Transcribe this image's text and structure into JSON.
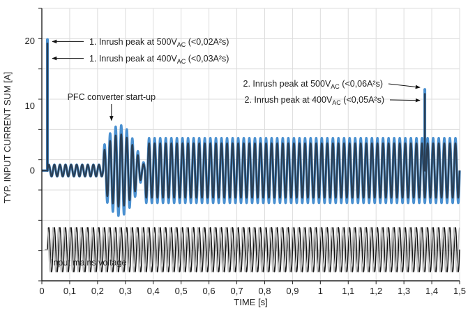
{
  "chart_data": {
    "type": "line",
    "xlabel": "TIME [s]",
    "ylabel": "TYP. INPUT CURRENT SUM [A]",
    "xlim": [
      0,
      1.5
    ],
    "ylim": [
      -17,
      25
    ],
    "x_ticks": [
      "0",
      "0,1",
      "0,2",
      "0,3",
      "0,4",
      "0,5",
      "0,6",
      "0,7",
      "0,8",
      "0,9",
      "1",
      "1,1",
      "1,2",
      "1,3",
      "1,4",
      "1,5"
    ],
    "y_ticks": [
      {
        "value": 20,
        "label": "20"
      },
      {
        "value": 10,
        "label": "10"
      },
      {
        "value": 0,
        "label": "0"
      }
    ],
    "grid": true,
    "series": [
      {
        "color": "#4a90d0",
        "segments": [
          {
            "from": 0.0,
            "to": 0.02,
            "amplitude": 0
          },
          {
            "from": 0.02,
            "to": 0.22,
            "amplitude": 0.9
          },
          {
            "from": 0.22,
            "to": 0.37,
            "amplitude": 7.0,
            "shape": "burst",
            "center": 0.28
          },
          {
            "from": 0.37,
            "to": 1.5,
            "amplitude": 5.0
          }
        ],
        "peaks": [
          {
            "x": 0.02,
            "y": 20.2
          },
          {
            "x": 1.375,
            "y": 12.5
          }
        ]
      },
      {
        "color": "#2a3f55",
        "segments": [
          {
            "from": 0.0,
            "to": 0.02,
            "amplitude": 0
          },
          {
            "from": 0.02,
            "to": 0.22,
            "amplitude": 0.9
          },
          {
            "from": 0.22,
            "to": 0.37,
            "amplitude": 5.6,
            "shape": "burst",
            "center": 0.28
          },
          {
            "from": 0.37,
            "to": 1.5,
            "amplitude": 4.2
          }
        ],
        "peaks": [
          {
            "x": 0.02,
            "y": 19.6
          },
          {
            "x": 1.375,
            "y": 11.8
          }
        ]
      }
    ],
    "mains_voltage": {
      "x_start": 0.02,
      "x_end": 1.5,
      "frequency_hz": 50,
      "baseline_y": -12.2,
      "amplitude": 3.4,
      "colors": [
        "#111111",
        "#bbbbbb"
      ],
      "label": "Input mains voltage"
    },
    "annotations": [
      {
        "id": "inrush1_500",
        "text_pre": "1. Inrush peak at 500V",
        "sub": "AC",
        "text_post": " (<0,02A²s)",
        "arrow_to": {
          "x": 0.02,
          "y": 20.0
        },
        "anchor": "right-of-peak"
      },
      {
        "id": "inrush1_400",
        "text_pre": "1. Inrush peak at 400V",
        "sub": "AC",
        "text_post": " (<0,03A²s)",
        "arrow_to": {
          "x": 0.02,
          "y": 17.4
        },
        "anchor": "right-of-peak"
      },
      {
        "id": "pfc",
        "text": "PFC converter start-up",
        "arrow_to": {
          "x": 0.275,
          "y": 7.4
        },
        "anchor": "above"
      },
      {
        "id": "inrush2_500",
        "text_pre": "2. Inrush peak at 500V",
        "sub": "AC",
        "text_post": " (<0,06A²s)",
        "arrow_to": {
          "x": 1.37,
          "y": 12.6
        },
        "anchor": "left-of-peak"
      },
      {
        "id": "inrush2_400",
        "text_pre": "2. Inrush peak at 400V",
        "sub": "AC",
        "text_post": " (<0,05A²s)",
        "arrow_to": {
          "x": 1.37,
          "y": 10.6
        },
        "anchor": "left-of-peak"
      }
    ]
  }
}
